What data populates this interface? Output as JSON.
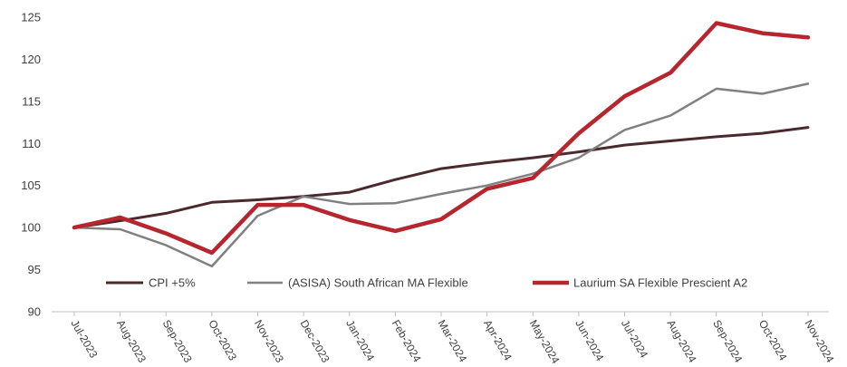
{
  "chart_data": {
    "type": "line",
    "categories": [
      "Jul-2023",
      "Aug-2023",
      "Sep-2023",
      "Oct-2023",
      "Nov-2023",
      "Dec-2023",
      "Jan-2024",
      "Feb-2024",
      "Mar-2024",
      "Apr-2024",
      "May-2024",
      "Jun-2024",
      "Jul-2024",
      "Aug-2024",
      "Sep-2024",
      "Oct-2024",
      "Nov-2024"
    ],
    "series": [
      {
        "name": "CPI +5%",
        "color": "#4a2a2e",
        "values": [
          100,
          100.8,
          101.7,
          103.0,
          103.3,
          103.7,
          104.2,
          105.7,
          107.0,
          107.7,
          108.3,
          109.0,
          109.8,
          110.3,
          110.8,
          111.2,
          111.9
        ]
      },
      {
        "name": "(ASISA) South African MA Flexible",
        "color": "#808080",
        "values": [
          100,
          99.8,
          97.9,
          95.4,
          101.4,
          103.7,
          102.8,
          102.9,
          104.0,
          105.0,
          106.4,
          108.3,
          111.6,
          113.3,
          116.5,
          115.9,
          117.1
        ]
      },
      {
        "name": "Laurium SA Flexible Prescient A2",
        "color": "#b5262f",
        "values": [
          100,
          101.2,
          99.3,
          97.0,
          102.7,
          102.7,
          100.9,
          99.6,
          101.0,
          104.6,
          105.9,
          111.2,
          115.6,
          118.4,
          124.3,
          123.1,
          122.6
        ]
      }
    ],
    "yticks": [
      90,
      95,
      100,
      105,
      110,
      115,
      120,
      125
    ],
    "ylim": [
      90,
      125
    ],
    "grid": false,
    "legend_position": "bottom-inside"
  }
}
